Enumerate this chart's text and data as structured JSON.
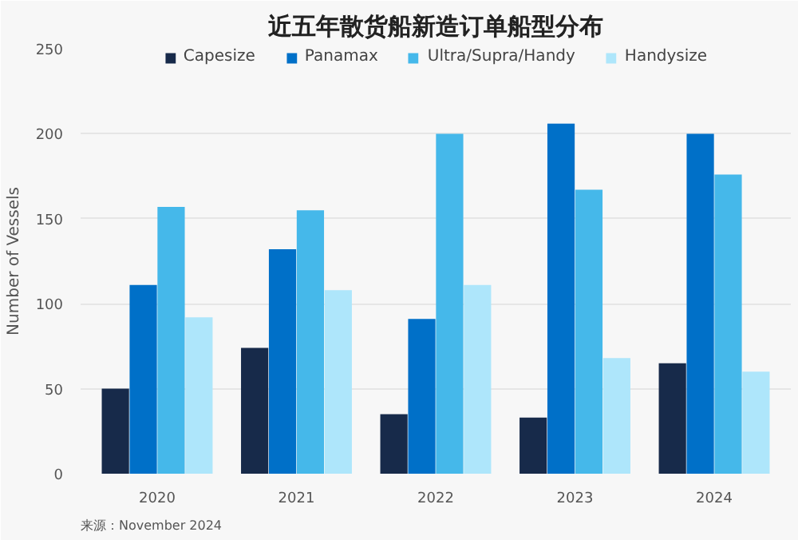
{
  "chart_data": {
    "type": "bar",
    "title": "近五年散货船新造订单船型分布",
    "ylabel": "Number of Vessels",
    "categories": [
      "2020",
      "2021",
      "2022",
      "2023",
      "2024"
    ],
    "series": [
      {
        "name": "Capesize",
        "color": "#172a4a",
        "values": [
          50,
          74,
          35,
          33,
          65
        ]
      },
      {
        "name": "Panamax",
        "color": "#0070c8",
        "values": [
          111,
          132,
          91,
          206,
          200
        ]
      },
      {
        "name": "Ultra/Supra/Handy",
        "color": "#45b8ea",
        "values": [
          157,
          155,
          200,
          167,
          176
        ]
      },
      {
        "name": "Handysize",
        "color": "#aee6fb",
        "values": [
          92,
          108,
          111,
          68,
          60
        ]
      }
    ],
    "ylim": [
      0,
      250
    ],
    "yticks": [
      0,
      50,
      100,
      150,
      200,
      250
    ],
    "grid": "y",
    "legend": "top",
    "annotations": [
      "来源：November 2024"
    ]
  }
}
